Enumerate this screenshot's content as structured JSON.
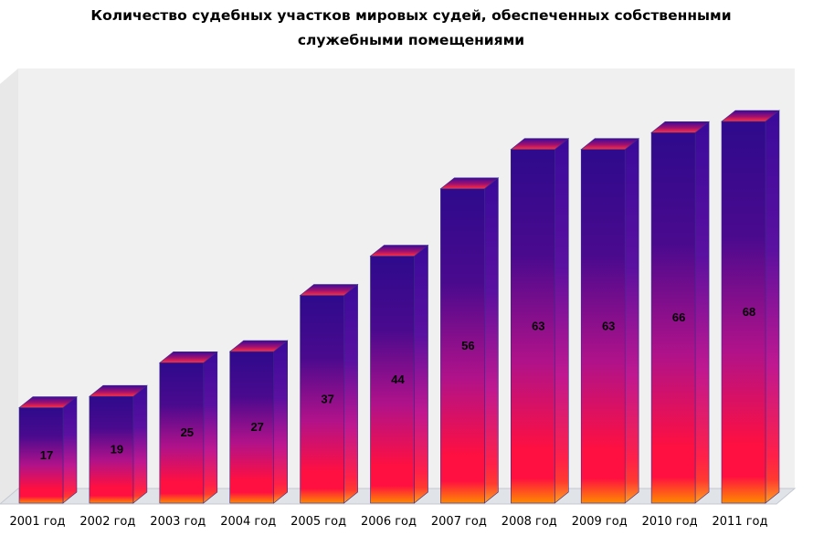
{
  "chart_data": {
    "type": "bar",
    "title": "Количество судебных участков мировых судей, обеспеченных собственными служебными помещениями",
    "categories": [
      "2001 год",
      "2002 год",
      "2003 год",
      "2004 год",
      "2005 год",
      "2006 год",
      "2007 год",
      "2008 год",
      "2009 год",
      "2010 год",
      "2011 год"
    ],
    "values": [
      17,
      19,
      25,
      27,
      37,
      44,
      56,
      63,
      63,
      66,
      68
    ],
    "ylim": [
      0,
      68
    ],
    "grid": false,
    "legend": "none",
    "style": "3d-column-gradient",
    "colors": {
      "bar_top": "#2e0a8c",
      "bar_mid": "#b0128a",
      "bar_red": "#ff1040",
      "bar_bottom": "#ff8a00",
      "wall": "#f0f0f0"
    }
  }
}
